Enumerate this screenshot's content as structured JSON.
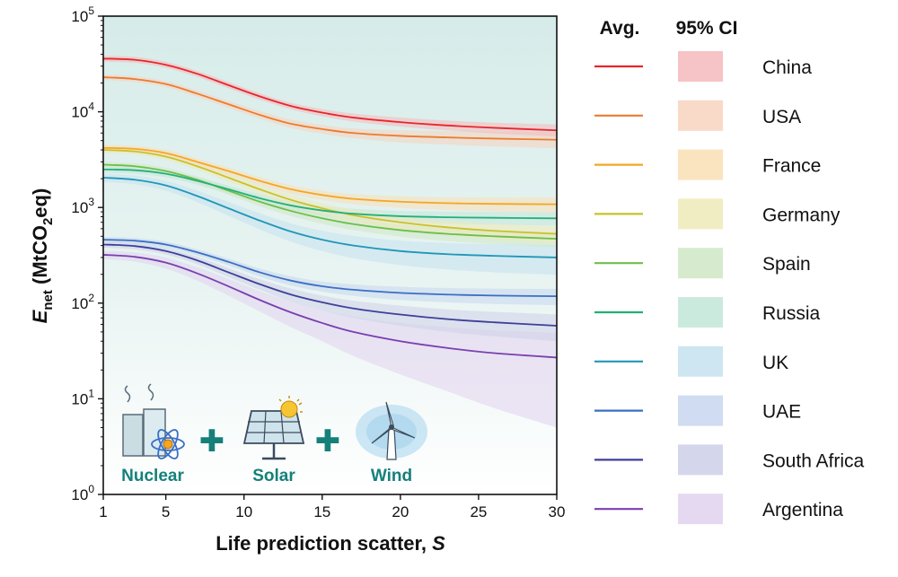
{
  "chart_data": {
    "type": "line",
    "xlabel": "Life prediction scatter, ",
    "xlabel_var": "S",
    "ylabel_main": "E",
    "ylabel_sub": "net",
    "ylabel_unit_a": " (MtCO",
    "ylabel_unit_sub": "2",
    "ylabel_unit_b": "eq)",
    "xlim": [
      1,
      30
    ],
    "ylim": [
      1,
      100000
    ],
    "yscale": "log",
    "x_ticks": [
      1,
      5,
      10,
      15,
      20,
      25,
      30
    ],
    "y_ticks": [
      {
        "value": 1,
        "base": "10",
        "exp": "0"
      },
      {
        "value": 10,
        "base": "10",
        "exp": "1"
      },
      {
        "value": 100,
        "base": "10",
        "exp": "2"
      },
      {
        "value": 1000,
        "base": "10",
        "exp": "3"
      },
      {
        "value": 10000,
        "base": "10",
        "exp": "4"
      },
      {
        "value": 100000,
        "base": "10",
        "exp": "5"
      }
    ],
    "legend_placement": "right",
    "legend_header_avg": "Avg.",
    "legend_header_ci": "95% CI",
    "x": [
      1,
      3,
      5,
      7,
      9,
      11,
      13,
      15,
      17,
      20,
      23,
      26,
      30
    ],
    "series": [
      {
        "name": "China",
        "color": "#e8262b",
        "band_color": "#f5b8bc",
        "values": [
          36000,
          35000,
          31000,
          25000,
          19000,
          14500,
          11500,
          9800,
          8700,
          7800,
          7200,
          6800,
          6400
        ],
        "lower": [
          33500,
          32500,
          28800,
          23200,
          17600,
          13400,
          10600,
          9000,
          7900,
          7000,
          6400,
          5950,
          5500
        ],
        "upper": [
          38500,
          37500,
          33300,
          26800,
          20500,
          15600,
          12400,
          10700,
          9600,
          8700,
          8100,
          7700,
          7400
        ]
      },
      {
        "name": "USA",
        "color": "#ed7b2e",
        "band_color": "#f8d2bd",
        "values": [
          23000,
          22000,
          19500,
          15500,
          12000,
          9300,
          7500,
          6600,
          6000,
          5600,
          5400,
          5250,
          5100
        ],
        "lower": [
          21500,
          20500,
          18100,
          14300,
          11000,
          8500,
          6800,
          5900,
          5300,
          4800,
          4550,
          4350,
          4150
        ],
        "upper": [
          24500,
          23500,
          20900,
          16700,
          13000,
          10200,
          8300,
          7300,
          6700,
          6400,
          6300,
          6200,
          6100
        ]
      },
      {
        "name": "France",
        "color": "#f5a623",
        "band_color": "#f9dfb4",
        "values": [
          4200,
          4100,
          3700,
          3000,
          2400,
          1900,
          1550,
          1350,
          1230,
          1150,
          1110,
          1090,
          1080
        ],
        "lower": [
          3900,
          3800,
          3400,
          2750,
          2180,
          1720,
          1390,
          1200,
          1080,
          990,
          940,
          910,
          890
        ],
        "upper": [
          4500,
          4400,
          4000,
          3250,
          2620,
          2080,
          1710,
          1500,
          1380,
          1310,
          1280,
          1270,
          1270
        ]
      },
      {
        "name": "Germany",
        "color": "#c9c22a",
        "band_color": "#eeeab8",
        "values": [
          4000,
          3850,
          3400,
          2700,
          2050,
          1550,
          1200,
          980,
          830,
          700,
          620,
          570,
          530
        ],
        "lower": [
          3700,
          3560,
          3120,
          2460,
          1850,
          1380,
          1050,
          850,
          710,
          590,
          515,
          465,
          425
        ],
        "upper": [
          4300,
          4140,
          3680,
          2940,
          2250,
          1720,
          1350,
          1110,
          950,
          810,
          725,
          675,
          635
        ]
      },
      {
        "name": "Spain",
        "color": "#6bbf4a",
        "band_color": "#cfe8c4",
        "values": [
          2800,
          2700,
          2400,
          1950,
          1500,
          1150,
          920,
          770,
          670,
          580,
          530,
          500,
          470
        ],
        "lower": [
          2600,
          2500,
          2200,
          1780,
          1360,
          1030,
          815,
          675,
          580,
          495,
          445,
          415,
          385
        ],
        "upper": [
          3000,
          2900,
          2600,
          2120,
          1640,
          1270,
          1025,
          865,
          760,
          665,
          615,
          585,
          555
        ]
      },
      {
        "name": "Russia",
        "color": "#22b07a",
        "band_color": "#c2e6d8",
        "values": [
          2500,
          2450,
          2250,
          1900,
          1550,
          1250,
          1050,
          930,
          860,
          810,
          790,
          780,
          770
        ],
        "lower": [
          2300,
          2250,
          2060,
          1730,
          1400,
          1120,
          935,
          820,
          750,
          700,
          675,
          660,
          645
        ],
        "upper": [
          2700,
          2650,
          2440,
          2070,
          1700,
          1380,
          1165,
          1040,
          970,
          920,
          905,
          900,
          895
        ]
      },
      {
        "name": "UK",
        "color": "#2196b8",
        "band_color": "#c4e2ee",
        "values": [
          2050,
          1950,
          1700,
          1320,
          980,
          730,
          560,
          460,
          400,
          350,
          325,
          312,
          300
        ],
        "lower": [
          1850,
          1750,
          1500,
          1140,
          820,
          590,
          440,
          350,
          295,
          250,
          225,
          210,
          198
        ],
        "upper": [
          2250,
          2150,
          1900,
          1500,
          1140,
          870,
          680,
          570,
          505,
          450,
          425,
          414,
          402
        ]
      },
      {
        "name": "UAE",
        "color": "#3a6fc4",
        "band_color": "#c7d6ee",
        "values": [
          460,
          450,
          410,
          340,
          270,
          210,
          172,
          150,
          138,
          128,
          123,
          120,
          118
        ],
        "lower": [
          430,
          420,
          382,
          315,
          248,
          190,
          153,
          132,
          119,
          108,
          102,
          98,
          95
        ],
        "upper": [
          490,
          480,
          438,
          365,
          292,
          230,
          191,
          168,
          157,
          148,
          144,
          142,
          141
        ]
      },
      {
        "name": "South Africa",
        "color": "#3f3f99",
        "band_color": "#cdd0e8",
        "values": [
          410,
          395,
          350,
          280,
          210,
          158,
          123,
          102,
          88,
          76,
          68,
          63,
          58
        ],
        "lower": [
          380,
          365,
          322,
          255,
          188,
          138,
          104,
          84,
          70,
          58,
          50,
          45,
          40
        ],
        "upper": [
          440,
          425,
          378,
          305,
          232,
          178,
          142,
          120,
          106,
          94,
          86,
          81,
          76
        ]
      },
      {
        "name": "Argentina",
        "color": "#7a3fb0",
        "band_color": "#e1d2ee",
        "values": [
          320,
          305,
          265,
          205,
          150,
          108,
          80,
          62,
          50,
          40,
          34,
          30,
          27
        ],
        "lower": [
          290,
          272,
          230,
          172,
          120,
          82,
          56,
          40,
          28,
          18,
          12,
          8,
          5
        ],
        "upper": [
          350,
          338,
          300,
          238,
          180,
          134,
          104,
          84,
          72,
          62,
          56,
          52,
          49
        ]
      }
    ]
  },
  "icons": {
    "nuclear_label": "Nuclear",
    "solar_label": "Solar",
    "wind_label": "Wind",
    "plus_symbol": "✚"
  },
  "colors": {
    "plot_background_top": "#d6ece9",
    "plot_background_bottom": "#ffffff",
    "icon_teal": "#15807a"
  }
}
